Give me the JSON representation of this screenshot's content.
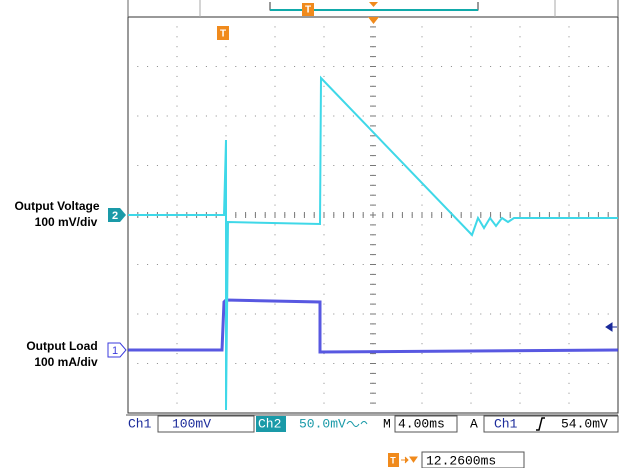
{
  "labels": {
    "voltage": {
      "name": "Output Voltage",
      "scale": "100 mV/div"
    },
    "load": {
      "name": "Output Load",
      "scale": "100 mA/div"
    }
  },
  "channel_markers": [
    "2",
    "1"
  ],
  "trigger_marker": "T",
  "status_bar": {
    "ch1_label": "Ch1",
    "ch1_scale": "100mV",
    "ch2_label": "Ch2",
    "ch2_scale": "50.0mV",
    "timebase_label": "M",
    "timebase": "4.00ms",
    "acquire": "A",
    "trigger_source": "Ch1",
    "trigger_level": "54.0mV"
  },
  "trigger_delay": "12.2600ms"
}
